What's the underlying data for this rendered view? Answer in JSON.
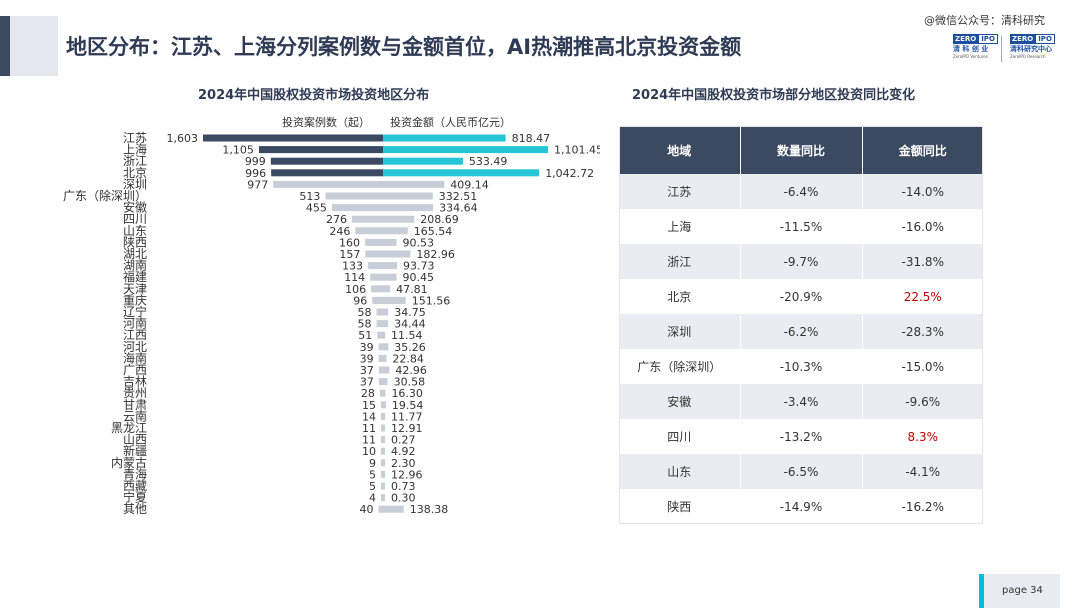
{
  "header": {
    "title": "地区分布：江苏、上海分列案例数与金额首位，AI热潮推高北京投资金额",
    "watermark": "@微信公众号：清科研究"
  },
  "brand": {
    "zero": "ZERO",
    "ipo": "IPO",
    "left_cn": "清 科 创 业",
    "left_en": "ZeroIPO Ventures",
    "right_cn": "清科研究中心",
    "right_en": "ZeroIPO Research"
  },
  "left_chart": {
    "title": "2024年中国股权投资市场投资地区分布",
    "legend_left": "投资案例数（起）",
    "legend_right": "投资金额（人民币亿元）"
  },
  "chart_data": {
    "type": "bar",
    "title": "2024年中国股权投资市场投资地区分布",
    "categories": [
      "江苏",
      "上海",
      "浙江",
      "北京",
      "深圳",
      "广东（除深圳）",
      "安徽",
      "四川",
      "山东",
      "陕西",
      "湖北",
      "湖南",
      "福建",
      "天津",
      "重庆",
      "辽宁",
      "河南",
      "江西",
      "河北",
      "海南",
      "广西",
      "吉林",
      "贵州",
      "甘肃",
      "云南",
      "黑龙江",
      "山西",
      "新疆",
      "内蒙古",
      "青海",
      "西藏",
      "宁夏",
      "其他"
    ],
    "series": [
      {
        "name": "投资案例数（起）",
        "values": [
          1603,
          1105,
          999,
          996,
          977,
          513,
          455,
          276,
          246,
          160,
          157,
          133,
          114,
          106,
          96,
          58,
          58,
          51,
          39,
          39,
          37,
          37,
          28,
          15,
          14,
          11,
          11,
          10,
          9,
          5,
          5,
          4,
          40
        ]
      },
      {
        "name": "投资金额（人民币亿元）",
        "values": [
          818.47,
          1101.45,
          533.49,
          1042.72,
          409.14,
          332.51,
          334.64,
          208.69,
          165.54,
          90.53,
          182.96,
          93.73,
          90.45,
          47.81,
          151.56,
          34.75,
          34.44,
          11.54,
          35.26,
          22.84,
          42.96,
          30.58,
          16.3,
          19.54,
          11.77,
          12.91,
          0.27,
          4.92,
          2.3,
          12.96,
          0.73,
          0.3,
          138.38
        ]
      }
    ],
    "labels_count": [
      "1,603",
      "1,105",
      "999",
      "996",
      "977",
      "513",
      "455",
      "276",
      "246",
      "160",
      "157",
      "133",
      "114",
      "106",
      "96",
      "58",
      "58",
      "51",
      "39",
      "39",
      "37",
      "37",
      "28",
      "15",
      "14",
      "11",
      "11",
      "10",
      "9",
      "5",
      "5",
      "4",
      "40"
    ],
    "labels_amount": [
      "818.47",
      "1,101.45",
      "533.49",
      "1,042.72",
      "409.14",
      "332.51",
      "334.64",
      "208.69",
      "165.54",
      "90.53",
      "182.96",
      "93.73",
      "90.45",
      "47.81",
      "151.56",
      "34.75",
      "34.44",
      "11.54",
      "35.26",
      "22.84",
      "42.96",
      "30.58",
      "16.30",
      "19.54",
      "11.77",
      "12.91",
      "0.27",
      "4.92",
      "2.30",
      "12.96",
      "0.73",
      "0.30",
      "138.38"
    ],
    "highlight_rows": 4,
    "colors": {
      "count_top": "#3b4a61",
      "amount_top": "#25c7d6",
      "other": "#c8ced8"
    }
  },
  "table": {
    "title": "2024年中国股权投资市场部分地区投资同比变化",
    "headers": [
      "地域",
      "数量同比",
      "金额同比"
    ],
    "rows": [
      [
        "江苏",
        "-6.4%",
        "-14.0%"
      ],
      [
        "上海",
        "-11.5%",
        "-16.0%"
      ],
      [
        "浙江",
        "-9.7%",
        "-31.8%"
      ],
      [
        "北京",
        "-20.9%",
        "22.5%"
      ],
      [
        "深圳",
        "-6.2%",
        "-28.3%"
      ],
      [
        "广东（除深圳）",
        "-10.3%",
        "-15.0%"
      ],
      [
        "安徽",
        "-3.4%",
        "-9.6%"
      ],
      [
        "四川",
        "-13.2%",
        "8.3%"
      ],
      [
        "山东",
        "-6.5%",
        "-4.1%"
      ],
      [
        "陕西",
        "-14.9%",
        "-16.2%"
      ]
    ],
    "positive_color": "#c00000"
  },
  "footer": {
    "page_label": "page  34"
  }
}
